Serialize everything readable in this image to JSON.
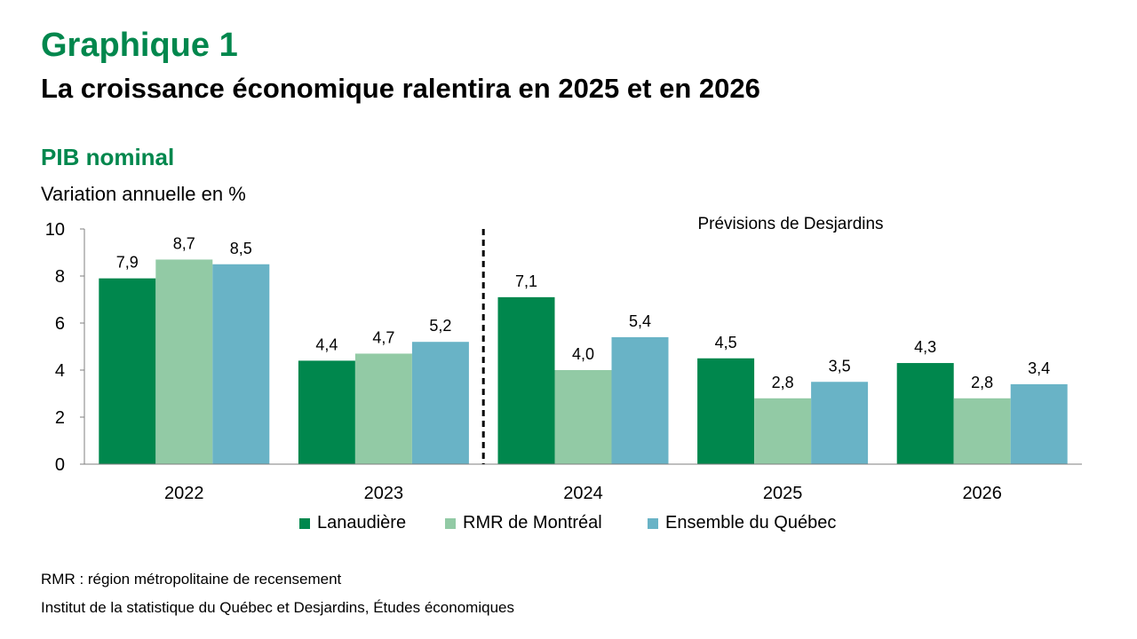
{
  "header": {
    "kicker": "Graphique 1",
    "title": "La croissance économique ralentira en 2025 et en 2026",
    "subtitle": "PIB nominal",
    "unit_label": "Variation annuelle en %"
  },
  "chart_data": {
    "type": "bar",
    "categories": [
      "2022",
      "2023",
      "2024",
      "2025",
      "2026"
    ],
    "series": [
      {
        "name": "Lanaudière",
        "color": "#00874d",
        "values": [
          7.9,
          4.4,
          7.1,
          4.5,
          4.3
        ],
        "labels": [
          "7,9",
          "4,4",
          "7,1",
          "4,5",
          "4,3"
        ]
      },
      {
        "name": "RMR de Montréal",
        "color": "#92caa5",
        "values": [
          8.7,
          4.7,
          4.0,
          2.8,
          2.8
        ],
        "labels": [
          "8,7",
          "4,7",
          "4,0",
          "2,8",
          "2,8"
        ]
      },
      {
        "name": "Ensemble du Québec",
        "color": "#69b3c6",
        "values": [
          8.5,
          5.2,
          5.4,
          3.5,
          3.4
        ],
        "labels": [
          "8,5",
          "5,2",
          "5,4",
          "3,5",
          "3,4"
        ]
      }
    ],
    "yticks": [
      "0",
      "2",
      "4",
      "6",
      "8",
      "10"
    ],
    "ylim": [
      0,
      10
    ],
    "forecast_annotation": "Prévisions de Desjardins",
    "forecast_divider_before": "2024",
    "grid": false,
    "legend_position": "bottom"
  },
  "footer": {
    "note": "RMR : région métropolitaine de recensement",
    "source": "Institut de la statistique du Québec et Desjardins, Études économiques"
  }
}
